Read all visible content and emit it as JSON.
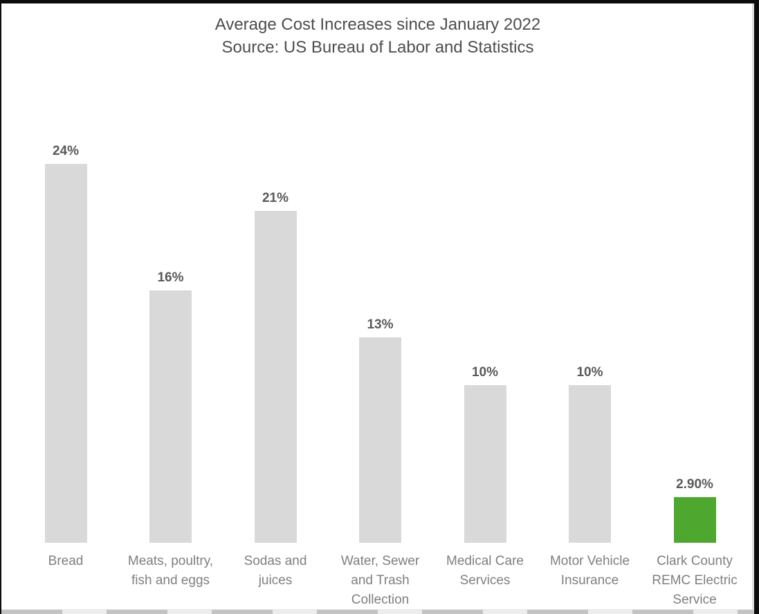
{
  "title": "Average Cost Increases since January 2022",
  "subtitle": "Source: US Bureau of Labor and Statistics",
  "chart_data": {
    "type": "bar",
    "title": "Average Cost Increases since January 2022",
    "subtitle": "Source: US Bureau of Labor and Statistics",
    "categories": [
      "Bread",
      "Meats, poultry, fish and eggs",
      "Sodas and juices",
      "Water, Sewer and Trash Collection",
      "Medical Care Services",
      "Motor Vehicle Insurance",
      "Clark County REMC Electric Service"
    ],
    "values": [
      24,
      16,
      21,
      13,
      10,
      10,
      2.9
    ],
    "value_labels": [
      "24%",
      "16%",
      "21%",
      "13%",
      "10%",
      "10%",
      "2.90%"
    ],
    "bar_colors": [
      "#d9d9d9",
      "#d9d9d9",
      "#d9d9d9",
      "#d9d9d9",
      "#d9d9d9",
      "#d9d9d9",
      "#4ea72e"
    ],
    "default_bar_color": "#d9d9d9",
    "highlight_color": "#4ea72e",
    "data_label_color": "#595959",
    "category_label_color": "#7f7f7f",
    "xlabel": "",
    "ylabel": "",
    "ylim": [
      0,
      26
    ],
    "gridlines": false,
    "legend": "none",
    "axis_lines": "none"
  }
}
